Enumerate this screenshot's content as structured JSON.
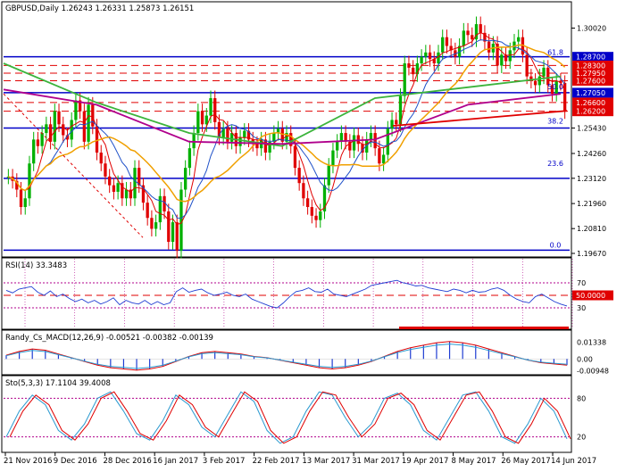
{
  "chart_data": [
    {
      "type": "line",
      "panel": "price",
      "title": "GBPUSD,Daily  1.26243 1.26331 1.25873 1.26151",
      "symbol": "GBPUSD",
      "timeframe": "Daily",
      "ohlc_last": [
        1.26243,
        1.26331,
        1.25873,
        1.26151
      ],
      "ylim": [
        1.1967,
        1.309
      ],
      "y_ticks": [
        "1.30020",
        "1.28700",
        "1.28300",
        "1.27950",
        "1.27600",
        "1.27050",
        "1.26600",
        "1.26200",
        "1.25430",
        "1.24260",
        "1.23120",
        "1.21960",
        "1.20810",
        "1.19670"
      ],
      "price_labels": [
        {
          "value": 1.287,
          "text": "1.28700"
        },
        {
          "value": 1.283,
          "text": "1.28300"
        },
        {
          "value": 1.2795,
          "text": "1.27950"
        },
        {
          "value": 1.276,
          "text": "1.27600"
        },
        {
          "value": 1.2705,
          "text": "1.27050"
        },
        {
          "value": 1.266,
          "text": "1.26600"
        },
        {
          "value": 1.262,
          "text": "1.26200"
        }
      ],
      "fib_levels": [
        {
          "label": "61.8",
          "value": 1.287
        },
        {
          "label": "50.0",
          "value": 1.2713
        },
        {
          "label": "38.2",
          "value": 1.2556
        },
        {
          "label": "23.6",
          "value": 1.2361
        },
        {
          "label": "0.0",
          "value": 1.1986
        }
      ],
      "blue_horizontals": [
        1.287,
        1.2705,
        1.2543,
        1.2312,
        1.1982
      ],
      "red_dashed_horizontals": [
        1.283,
        1.2795,
        1.276,
        1.266,
        1.262
      ],
      "current_price_label": "1.26200",
      "colors": {
        "bull": "#00b000",
        "bear": "#e00000",
        "ma_green": "#3cb43c",
        "ma_orange": "#f0a000",
        "ma_purple": "#b0008c",
        "ma_red": "#e00000",
        "ma_blue": "#1e50c8",
        "levels": "#0000c8"
      },
      "close_series": [
        1.232,
        1.23,
        1.226,
        1.218,
        1.222,
        1.238,
        1.249,
        1.246,
        1.252,
        1.256,
        1.248,
        1.262,
        1.256,
        1.251,
        1.249,
        1.258,
        1.267,
        1.262,
        1.248,
        1.265,
        1.255,
        1.243,
        1.238,
        1.232,
        1.228,
        1.225,
        1.229,
        1.222,
        1.226,
        1.222,
        1.236,
        1.228,
        1.22,
        1.213,
        1.208,
        1.211,
        1.223,
        1.216,
        1.202,
        1.211,
        1.198,
        1.226,
        1.236,
        1.245,
        1.252,
        1.262,
        1.256,
        1.26,
        1.268,
        1.257,
        1.25,
        1.254,
        1.248,
        1.252,
        1.246,
        1.25,
        1.253,
        1.249,
        1.247,
        1.245,
        1.249,
        1.243,
        1.248,
        1.252,
        1.254,
        1.248,
        1.252,
        1.246,
        1.236,
        1.229,
        1.222,
        1.218,
        1.214,
        1.212,
        1.216,
        1.228,
        1.237,
        1.244,
        1.248,
        1.252,
        1.248,
        1.244,
        1.251,
        1.247,
        1.243,
        1.249,
        1.252,
        1.245,
        1.238,
        1.242,
        1.254,
        1.258,
        1.256,
        1.269,
        1.284,
        1.282,
        1.279,
        1.284,
        1.287,
        1.289,
        1.286,
        1.284,
        1.289,
        1.296,
        1.292,
        1.29,
        1.287,
        1.292,
        1.299,
        1.297,
        1.295,
        1.302,
        1.298,
        1.294,
        1.289,
        1.293,
        1.283,
        1.288,
        1.285,
        1.29,
        1.294,
        1.296,
        1.288,
        1.278,
        1.276,
        1.274,
        1.278,
        1.282,
        1.274,
        1.27,
        1.276,
        1.275,
        1.262
      ],
      "ma_green": [
        1.284,
        1.266,
        1.252,
        1.246,
        1.268,
        1.273,
        1.278
      ],
      "ma_purple": [
        1.272,
        1.265,
        1.248,
        1.247,
        1.249,
        1.265,
        1.27
      ]
    },
    {
      "type": "line",
      "panel": "rsi",
      "title": "RSI(14) 33.3483",
      "ylim": [
        0,
        100
      ],
      "levels": [
        70,
        50,
        30
      ],
      "level_label": "50.0000",
      "values": [
        58,
        54,
        60,
        62,
        64,
        55,
        50,
        57,
        48,
        52,
        45,
        40,
        44,
        38,
        42,
        36,
        40,
        46,
        35,
        42,
        38,
        36,
        42,
        35,
        40,
        35,
        38,
        56,
        62,
        55,
        58,
        60,
        54,
        50,
        52,
        55,
        50,
        48,
        52,
        44,
        40,
        36,
        32,
        30,
        38,
        48,
        56,
        58,
        62,
        56,
        55,
        60,
        52,
        50,
        48,
        52,
        56,
        60,
        66,
        68,
        70,
        72,
        74,
        70,
        68,
        65,
        66,
        62,
        60,
        58,
        56,
        60,
        58,
        54,
        58,
        55,
        56,
        60,
        62,
        58,
        50,
        44,
        40,
        38,
        48,
        52,
        46,
        40,
        36,
        33
      ]
    },
    {
      "type": "line",
      "panel": "macd",
      "title": "Randy_Cs_MACD(12,26,9) -0.00521 -0.00382 -0.00139",
      "ylim": [
        -0.0105,
        0.0145
      ],
      "ticks": [
        "0.01338",
        "0.00",
        "-0.00948"
      ],
      "values": [
        0.003,
        0.006,
        0.008,
        0.007,
        0.004,
        0.001,
        -0.002,
        -0.005,
        -0.007,
        -0.008,
        -0.009,
        -0.008,
        -0.006,
        -0.002,
        0.002,
        0.005,
        0.006,
        0.005,
        0.004,
        0.002,
        0.001,
        -0.001,
        -0.003,
        -0.005,
        -0.007,
        -0.008,
        -0.007,
        -0.005,
        -0.002,
        0.002,
        0.006,
        0.009,
        0.011,
        0.013,
        0.014,
        0.013,
        0.011,
        0.008,
        0.005,
        0.002,
        -0.001,
        -0.003,
        -0.004,
        -0.005
      ]
    },
    {
      "type": "line",
      "panel": "stochastic",
      "title": "Sto(5,3,3) 17.1104 39.4008",
      "ylim": [
        0,
        100
      ],
      "ticks": [
        "80",
        "20"
      ],
      "values": [
        20,
        60,
        85,
        70,
        30,
        15,
        40,
        80,
        90,
        60,
        25,
        15,
        45,
        85,
        70,
        35,
        20,
        55,
        90,
        75,
        30,
        10,
        20,
        60,
        90,
        85,
        50,
        20,
        40,
        80,
        88,
        70,
        30,
        15,
        50,
        85,
        90,
        60,
        20,
        10,
        40,
        80,
        60,
        17
      ]
    }
  ],
  "x_axis_labels": [
    "21 Nov 2016",
    "9 Dec 2016",
    "28 Dec 2016",
    "16 Jan 2017",
    "3 Feb 2017",
    "22 Feb 2017",
    "13 Mar 2017",
    "31 Mar 2017",
    "19 Apr 2017",
    "8 May 2017",
    "26 May 2017",
    "14 Jun 2017"
  ]
}
